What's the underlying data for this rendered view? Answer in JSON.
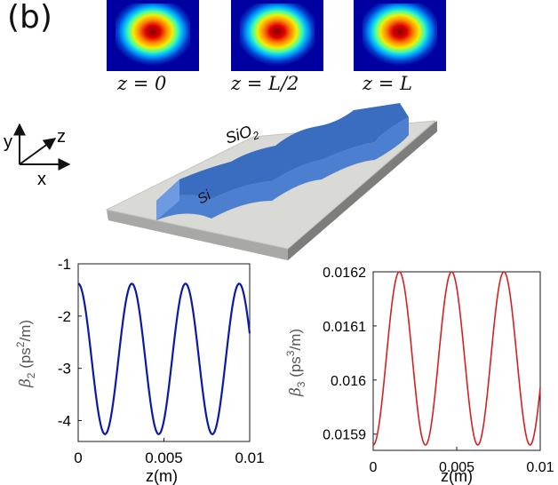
{
  "panel": {
    "label": "(b)"
  },
  "modes": [
    {
      "caption": "z = 0"
    },
    {
      "caption": "z = L/2"
    },
    {
      "caption": "z = L"
    }
  ],
  "axes3d": {
    "x": "x",
    "y": "y",
    "z": "z"
  },
  "device": {
    "cladding_label": "SiO",
    "cladding_sub": "2",
    "core_label": "Si"
  },
  "colors": {
    "core": "#4c7fcf",
    "substrate_top": "#d9d9d6",
    "plot1": "#0a1aa6",
    "plot2": "#d42020"
  },
  "chart_data": [
    {
      "type": "line",
      "title": "",
      "xlabel": "z(m)",
      "ylabel": {
        "symbol": "β",
        "sub": "2",
        "unit_pre": " (ps",
        "unit_sup": "2",
        "unit_post": "/m)"
      },
      "xlim": [
        0,
        0.01
      ],
      "ylim": [
        -4.4,
        -1
      ],
      "xticks": [
        0,
        0.005,
        0.01
      ],
      "xticklabels": [
        "0",
        "0.005",
        "0.01"
      ],
      "yticks": [
        -1,
        -2,
        -3,
        -4
      ],
      "yticklabels": [
        "-1",
        "-2",
        "-3",
        "-4"
      ],
      "series": [
        {
          "name": "beta2",
          "model": "sinusoid",
          "mean": -2.82,
          "amplitude": 1.44,
          "period": 0.00313,
          "phase_start": "maximum",
          "x_range": [
            0,
            0.01
          ]
        }
      ]
    },
    {
      "type": "line",
      "title": "",
      "xlabel": "z(m)",
      "ylabel": {
        "symbol": "β",
        "sub": "3",
        "unit_pre": " (ps",
        "unit_sup": "3",
        "unit_post": "/m)"
      },
      "xlim": [
        0,
        0.01
      ],
      "ylim": [
        0.01587,
        0.0162
      ],
      "xticks": [
        0,
        0.005,
        0.01
      ],
      "xticklabels": [
        "0",
        "0.005",
        "0.01"
      ],
      "yticks": [
        0.0162,
        0.0161,
        0.016,
        0.0159
      ],
      "yticklabels": [
        "0.0162",
        "0.0161",
        "0.016",
        "0.0159"
      ],
      "series": [
        {
          "name": "beta3",
          "model": "sinusoid",
          "mean": 0.01604,
          "amplitude": 0.00016,
          "period": 0.00313,
          "phase_start": "minimum",
          "x_range": [
            0,
            0.01
          ]
        }
      ]
    }
  ]
}
